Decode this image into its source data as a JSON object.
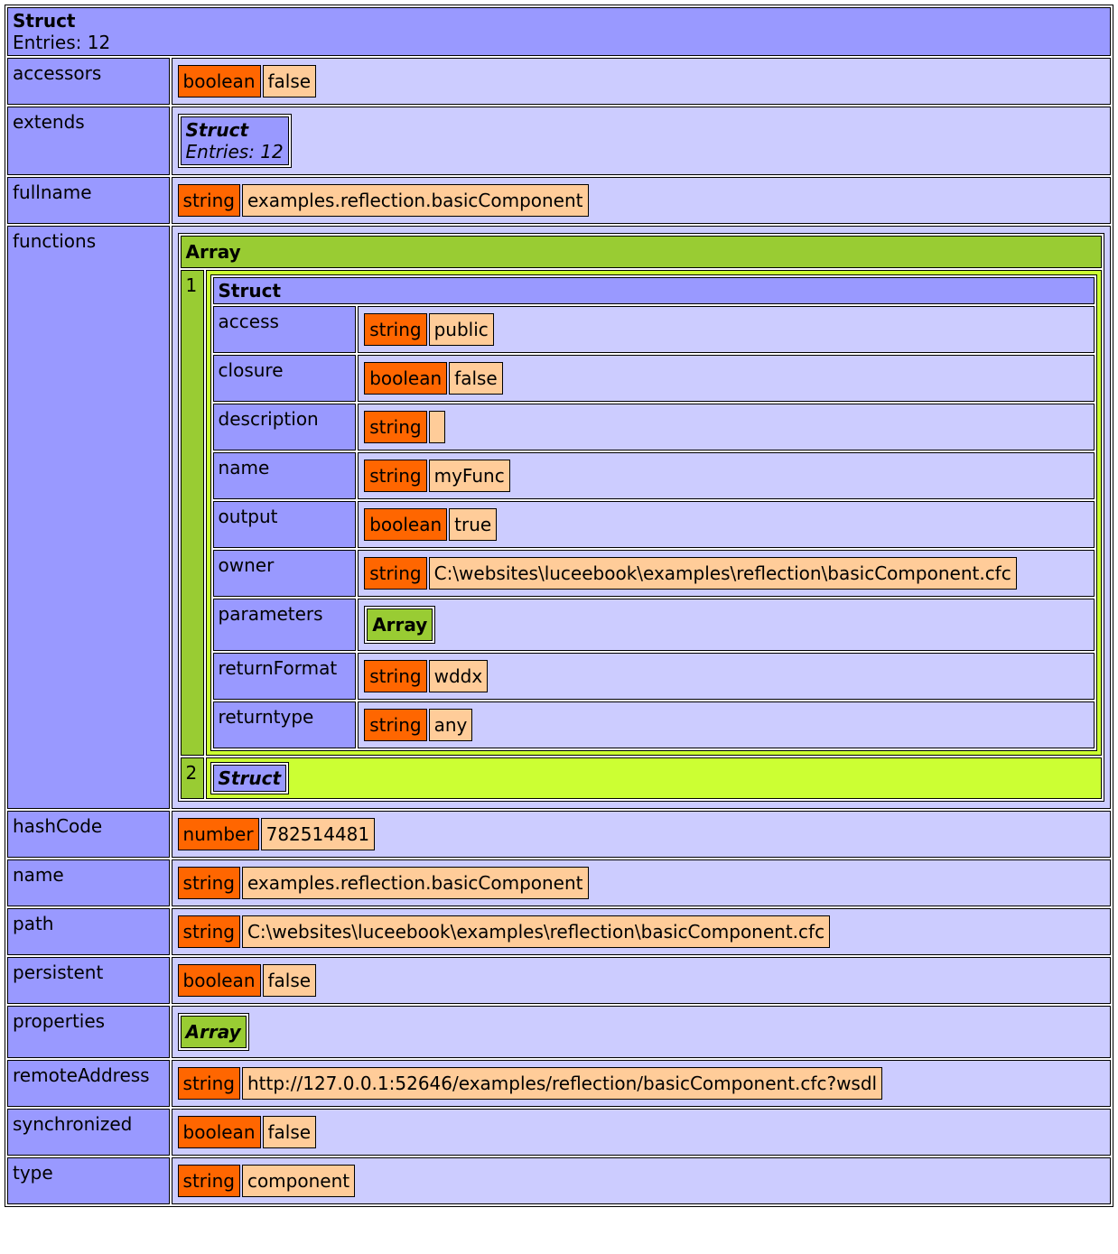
{
  "dump": {
    "title": "Struct",
    "entries": "Entries: 12",
    "rows": [
      {
        "key": "accessors",
        "type": "boolean",
        "value": "false"
      },
      {
        "key": "extends",
        "struct": {
          "title": "Struct",
          "entries": "Entries: 12",
          "collapsed": true
        }
      },
      {
        "key": "fullname",
        "type": "string",
        "value": "examples.reflection.basicComponent"
      },
      {
        "key": "functions",
        "array": {
          "title": "Array",
          "items": [
            {
              "index": "1",
              "struct": {
                "title": "Struct",
                "rows": [
                  {
                    "key": "access",
                    "type": "string",
                    "value": "public"
                  },
                  {
                    "key": "closure",
                    "type": "boolean",
                    "value": "false"
                  },
                  {
                    "key": "description",
                    "type": "string"
                  },
                  {
                    "key": "name",
                    "type": "string",
                    "value": "myFunc"
                  },
                  {
                    "key": "output",
                    "type": "boolean",
                    "value": "true"
                  },
                  {
                    "key": "owner",
                    "type": "string",
                    "value": "C:\\websites\\luceebook\\examples\\reflection\\basicComponent.cfc"
                  },
                  {
                    "key": "parameters",
                    "array": {
                      "title": "Array"
                    }
                  },
                  {
                    "key": "returnFormat",
                    "type": "string",
                    "value": "wddx"
                  },
                  {
                    "key": "returntype",
                    "type": "string",
                    "value": "any"
                  }
                ]
              }
            },
            {
              "index": "2",
              "struct": {
                "title": "Struct",
                "collapsed": true
              }
            }
          ]
        }
      },
      {
        "key": "hashCode",
        "type": "number",
        "value": "782514481"
      },
      {
        "key": "name",
        "type": "string",
        "value": "examples.reflection.basicComponent"
      },
      {
        "key": "path",
        "type": "string",
        "value": "C:\\websites\\luceebook\\examples\\reflection\\basicComponent.cfc"
      },
      {
        "key": "persistent",
        "type": "boolean",
        "value": "false"
      },
      {
        "key": "properties",
        "array": {
          "title": "Array",
          "collapsed": true
        }
      },
      {
        "key": "remoteAddress",
        "type": "string",
        "value": "http://127.0.0.1:52646/examples/reflection/basicComponent.cfc?wsdl"
      },
      {
        "key": "synchronized",
        "type": "boolean",
        "value": "false"
      },
      {
        "key": "type",
        "type": "string",
        "value": "component"
      }
    ]
  }
}
